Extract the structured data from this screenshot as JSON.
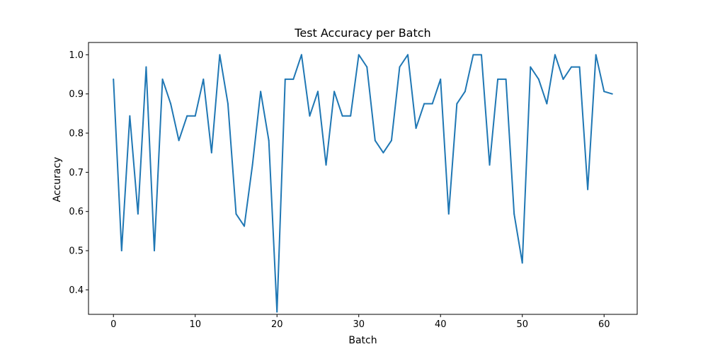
{
  "chart_data": {
    "type": "line",
    "title": "Test Accuracy per Batch",
    "xlabel": "Batch",
    "ylabel": "Accuracy",
    "xlim": [
      -3.05,
      64.05
    ],
    "ylim": [
      0.3375,
      1.0313
    ],
    "xticks": [
      0,
      10,
      20,
      30,
      40,
      50,
      60
    ],
    "yticks": [
      0.4,
      0.5,
      0.6,
      0.7,
      0.8,
      0.9,
      1.0
    ],
    "grid": false,
    "line_color": "#1f77b4",
    "x": [
      0,
      1,
      2,
      3,
      4,
      5,
      6,
      7,
      8,
      9,
      10,
      11,
      12,
      13,
      14,
      15,
      16,
      17,
      18,
      19,
      20,
      21,
      22,
      23,
      24,
      25,
      26,
      27,
      28,
      29,
      30,
      31,
      32,
      33,
      34,
      35,
      36,
      37,
      38,
      39,
      40,
      41,
      42,
      43,
      44,
      45,
      46,
      47,
      48,
      49,
      50,
      51,
      52,
      53,
      54,
      55,
      56,
      57,
      58,
      59,
      60,
      61
    ],
    "y": [
      0.9375,
      0.5,
      0.84375,
      0.59375,
      0.96875,
      0.5,
      0.9375,
      0.875,
      0.78125,
      0.84375,
      0.84375,
      0.9375,
      0.75,
      1.0,
      0.875,
      0.59375,
      0.5625,
      0.71875,
      0.90625,
      0.78125,
      0.34375,
      0.9375,
      0.9375,
      1.0,
      0.84375,
      0.90625,
      0.71875,
      0.90625,
      0.84375,
      0.84375,
      1.0,
      0.96875,
      0.78125,
      0.75,
      0.78125,
      0.96875,
      1.0,
      0.8125,
      0.875,
      0.875,
      0.9375,
      0.59375,
      0.875,
      0.90625,
      1.0,
      1.0,
      0.71875,
      0.9375,
      0.9375,
      0.59375,
      0.46875,
      0.96875,
      0.9375,
      0.875,
      1.0,
      0.9375,
      0.96875,
      0.96875,
      0.65625,
      1.0,
      0.90625,
      0.9
    ]
  }
}
